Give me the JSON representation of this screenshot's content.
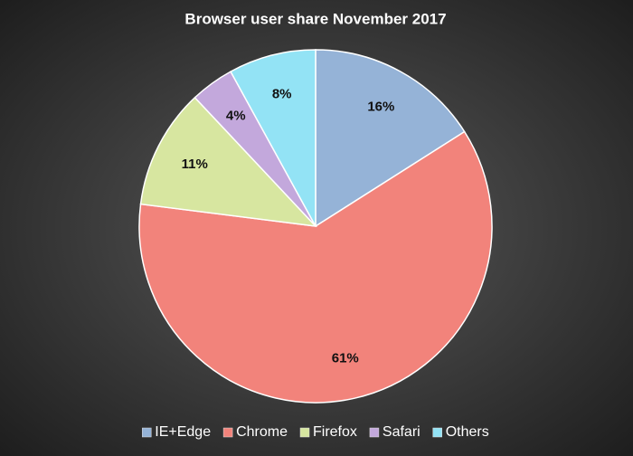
{
  "chart_data": {
    "type": "pie",
    "title": "Browser user share November 2017",
    "categories": [
      "IE+Edge",
      "Chrome",
      "Firefox",
      "Safari",
      "Others"
    ],
    "values": [
      16,
      61,
      11,
      4,
      8
    ],
    "value_labels": [
      "16%",
      "61%",
      "11%",
      "4%",
      "8%"
    ],
    "colors": [
      "#95b3d7",
      "#f2837b",
      "#d7e6a0",
      "#c3a8dc",
      "#93e3f5"
    ],
    "legend": "bottom"
  }
}
